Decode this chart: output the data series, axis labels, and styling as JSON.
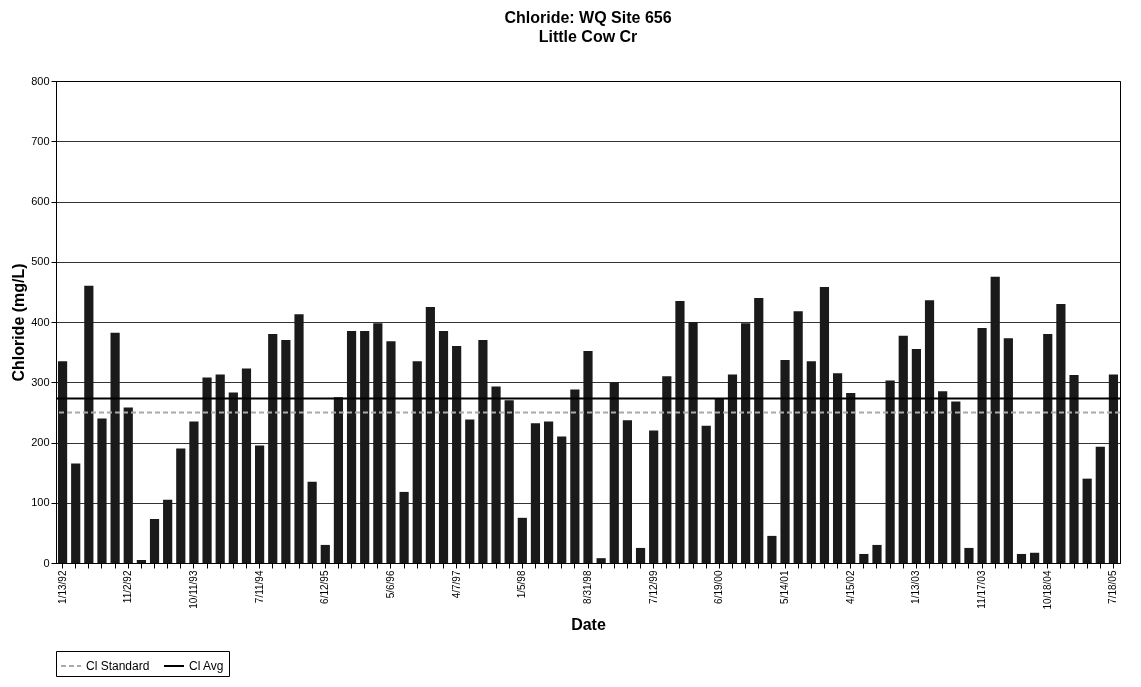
{
  "chart_data": {
    "type": "bar",
    "title": "Chloride: WQ Site 656",
    "subtitle": "Little Cow Cr",
    "xlabel": "Date",
    "ylabel": "Chloride (mg/L)",
    "categories": [
      "1/13/92",
      null,
      null,
      null,
      null,
      "11/2/92",
      null,
      null,
      null,
      null,
      "10/11/93",
      null,
      null,
      null,
      null,
      "7/11/94",
      null,
      null,
      null,
      null,
      "6/12/95",
      null,
      null,
      null,
      null,
      "5/6/96",
      null,
      null,
      null,
      null,
      "4/7/97",
      null,
      null,
      null,
      null,
      "1/5/98",
      null,
      null,
      null,
      null,
      "8/31/98",
      null,
      null,
      null,
      null,
      "7/12/99",
      null,
      null,
      null,
      null,
      "6/19/00",
      null,
      null,
      null,
      null,
      "5/14/01",
      null,
      null,
      null,
      null,
      "4/15/02",
      null,
      null,
      null,
      null,
      "1/13/03",
      null,
      null,
      null,
      null,
      "11/17/03",
      null,
      null,
      null,
      null,
      "10/18/04",
      null,
      null,
      null,
      null,
      "7/18/05"
    ],
    "values": [
      335,
      165,
      460,
      240,
      382,
      258,
      5,
      73,
      105,
      190,
      235,
      308,
      313,
      283,
      323,
      195,
      380,
      370,
      413,
      135,
      30,
      275,
      385,
      385,
      398,
      368,
      118,
      335,
      425,
      385,
      360,
      238,
      370,
      293,
      270,
      75,
      232,
      235,
      210,
      288,
      352,
      8,
      300,
      237,
      25,
      220,
      310,
      435,
      400,
      228,
      272,
      313,
      398,
      440,
      45,
      337,
      418,
      335,
      458,
      315,
      282,
      15,
      30,
      303,
      377,
      355,
      436,
      285,
      268,
      25,
      390,
      475,
      373,
      15,
      17,
      380,
      430,
      312,
      140,
      193,
      313
    ],
    "color": "#1a1a1a",
    "ylim": [
      0,
      800
    ],
    "yticks": [
      0,
      100,
      200,
      300,
      400,
      500,
      600,
      700,
      800
    ],
    "grid": "y",
    "legend": "bottom",
    "ref_lines": [
      {
        "axis": "y",
        "value": 250,
        "label": "Cl Standard",
        "color": "#aaaaaa",
        "line_style": "dashed"
      },
      {
        "axis": "y",
        "value": 273,
        "label": "Cl Avg",
        "color": "#000000",
        "line_style": "solid"
      }
    ]
  }
}
